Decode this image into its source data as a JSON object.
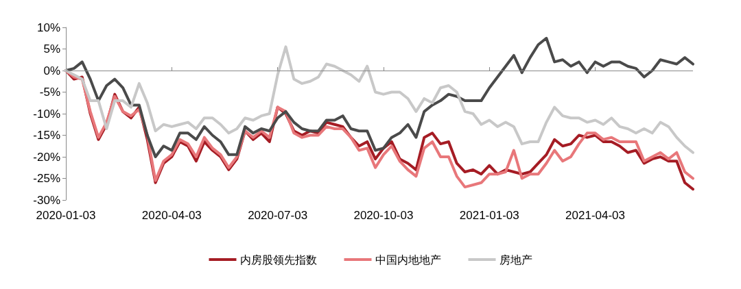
{
  "chart_data": {
    "type": "line",
    "categories": [
      "2020-01-03",
      null,
      null,
      null,
      null,
      null,
      null,
      null,
      null,
      null,
      null,
      null,
      null,
      "2020-04-03",
      null,
      null,
      null,
      null,
      null,
      null,
      null,
      null,
      null,
      null,
      null,
      null,
      "2020-07-03",
      null,
      null,
      null,
      null,
      null,
      null,
      null,
      null,
      null,
      null,
      null,
      null,
      "2020-10-03",
      null,
      null,
      null,
      null,
      null,
      null,
      null,
      null,
      null,
      null,
      null,
      null,
      "2021-01-03",
      null,
      null,
      null,
      null,
      null,
      null,
      null,
      null,
      null,
      null,
      null,
      null,
      "2021-04-03",
      null,
      null,
      null,
      null,
      null,
      null,
      null,
      null,
      null,
      null,
      null,
      null
    ],
    "ylim": [
      -30,
      10
    ],
    "yticks": [
      {
        "value": -30,
        "label": "-30%"
      },
      {
        "value": -25,
        "label": "-25%"
      },
      {
        "value": -20,
        "label": "-20%"
      },
      {
        "value": -15,
        "label": "-15%"
      },
      {
        "value": -10,
        "label": "-10%"
      },
      {
        "value": -5,
        "label": "-5%"
      },
      {
        "value": 0,
        "label": "0%"
      },
      {
        "value": 5,
        "label": "5%"
      },
      {
        "value": 10,
        "label": "10%"
      }
    ],
    "grid": false,
    "ref_lines": [
      {
        "axis": "y",
        "value": 0,
        "color": "#888888",
        "line_style": "solid"
      }
    ],
    "legend": "bottom",
    "marker": "none",
    "line_style": "solid",
    "series": [
      {
        "name": "内房股领先指数",
        "color": "#a51c24",
        "values": [
          0,
          -2,
          -1.5,
          -10,
          -16,
          -12.5,
          -5.5,
          -9.5,
          -11,
          -8.5,
          -16,
          -26,
          -21.5,
          -20,
          -16.5,
          -17.5,
          -21,
          -16.5,
          -18.5,
          -20,
          -23,
          -20.5,
          -14,
          -16,
          -14.5,
          -16.5,
          -8.5,
          -10,
          -14,
          -15,
          -14,
          -14.5,
          -12,
          -12.5,
          -13,
          -15.5,
          -17.5,
          -16.5,
          -20.5,
          -18,
          -16.5,
          -20.5,
          -21.5,
          -23,
          -15.5,
          -14.5,
          -17,
          -16.5,
          -21.5,
          -23.5,
          -23,
          -24,
          -22,
          -24,
          -23,
          -23.5,
          -24,
          -23.5,
          -21.5,
          -19.5,
          -16,
          -17.5,
          -17,
          -15,
          -15.5,
          -15,
          -16.5,
          -16.5,
          -17.5,
          -19,
          -18.5,
          -21.5,
          -20.5,
          -20,
          -21,
          -21,
          -26,
          -27.5
        ]
      },
      {
        "name": "中国内地地产",
        "color": "#e8777a",
        "values": [
          0,
          -1.5,
          -2,
          -9.5,
          -15.5,
          -12,
          -6,
          -9.5,
          -10.5,
          -9,
          -15,
          -25.5,
          -21,
          -19.5,
          -16,
          -17,
          -20,
          -15.5,
          -18,
          -19.5,
          -22.5,
          -20,
          -14,
          -15.5,
          -14,
          -15.5,
          -8.5,
          -9.5,
          -14.5,
          -15.5,
          -15,
          -15,
          -13,
          -13.5,
          -13.5,
          -15.5,
          -18.5,
          -18,
          -22.5,
          -19.5,
          -17.5,
          -21,
          -23,
          -24.5,
          -18,
          -16.5,
          -20,
          -20,
          -24.5,
          -27,
          -26.5,
          -26,
          -24,
          -24,
          -23.5,
          -18.5,
          -25,
          -24,
          -24,
          -21.5,
          -18.5,
          -21,
          -20,
          -17,
          -14.5,
          -14.5,
          -16,
          -15.5,
          -16.5,
          -16.5,
          -16.5,
          -21,
          -20,
          -19,
          -20.5,
          -19,
          -23.5,
          -25
        ]
      },
      {
        "color": "#4a4a4a",
        "values": [
          0,
          0.5,
          2,
          -2,
          -7,
          -3.5,
          -2,
          -4,
          -8,
          -8,
          -15,
          -20,
          -17.5,
          -18.5,
          -14.5,
          -14.5,
          -16,
          -13,
          -15,
          -16.5,
          -19.5,
          -19.5,
          -13,
          -14.5,
          -13.5,
          -14,
          -11,
          -9.5,
          -12,
          -13.5,
          -14,
          -14,
          -11.5,
          -11.5,
          -10.5,
          -13.5,
          -14,
          -14,
          -18.5,
          -18,
          -15.5,
          -14.5,
          -12.5,
          -15.5,
          -9.5,
          -8,
          -7,
          -5.5,
          -6,
          -7,
          -7,
          -7,
          -4,
          -1.5,
          1,
          3.5,
          -0.5,
          3,
          6,
          7.5,
          2,
          2.5,
          1,
          2,
          -0.5,
          2,
          1,
          2,
          2,
          1,
          0.5,
          -1.5,
          0,
          2.5,
          2,
          1.5,
          3,
          1.5
        ]
      },
      {
        "name": "房地产",
        "color": "#c8c8c8",
        "values": [
          0,
          -1,
          -2,
          -7,
          -7,
          -13.5,
          -7,
          -7,
          -8.5,
          -3,
          -7.5,
          -14,
          -12.5,
          -13,
          -12.5,
          -12,
          -13.5,
          -11,
          -11,
          -12.5,
          -14.5,
          -13.5,
          -11,
          -11.5,
          -10.5,
          -10,
          -1,
          5.5,
          -2,
          -3,
          -2.5,
          -1.5,
          1.5,
          1,
          0,
          -1,
          -2.5,
          1,
          -5,
          -5.5,
          -5,
          -5,
          -6.5,
          -9.5,
          -6.5,
          -7.5,
          -4,
          -3.5,
          -5,
          -9.5,
          -10,
          -12.5,
          -11.5,
          -13,
          -12,
          -13,
          -17,
          -16.5,
          -16.5,
          -12,
          -8.5,
          -10.5,
          -11,
          -11,
          -12,
          -11.5,
          -12.5,
          -11,
          -13,
          -13.5,
          -14.5,
          -13.5,
          -14.5,
          -12,
          -13,
          -15.5,
          -17.5,
          -19
        ]
      }
    ]
  }
}
